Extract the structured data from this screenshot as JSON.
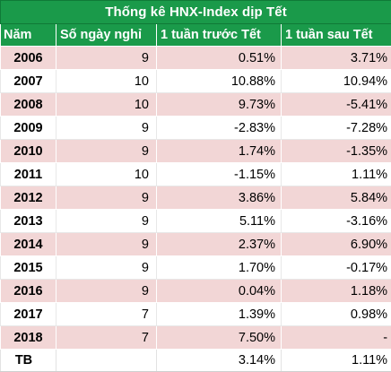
{
  "title": "Thống kê HNX-Index dịp Tết",
  "columns": {
    "year": "Năm",
    "days": "Số ngày nghỉ",
    "before": "1 tuần trước Tết",
    "after": "1 tuần sau Tết"
  },
  "rows": [
    {
      "year": "2006",
      "days": "9",
      "before": "0.51%",
      "after": "3.71%"
    },
    {
      "year": "2007",
      "days": "10",
      "before": "10.88%",
      "after": "10.94%"
    },
    {
      "year": "2008",
      "days": "10",
      "before": "9.73%",
      "after": "-5.41%"
    },
    {
      "year": "2009",
      "days": "9",
      "before": "-2.83%",
      "after": "-7.28%"
    },
    {
      "year": "2010",
      "days": "9",
      "before": "1.74%",
      "after": "-1.35%"
    },
    {
      "year": "2011",
      "days": "10",
      "before": "-1.15%",
      "after": "1.11%"
    },
    {
      "year": "2012",
      "days": "9",
      "before": "3.86%",
      "after": "5.84%"
    },
    {
      "year": "2013",
      "days": "9",
      "before": "5.11%",
      "after": "-3.16%"
    },
    {
      "year": "2014",
      "days": "9",
      "before": "2.37%",
      "after": "6.90%"
    },
    {
      "year": "2015",
      "days": "9",
      "before": "1.70%",
      "after": "-0.17%"
    },
    {
      "year": "2016",
      "days": "9",
      "before": "0.04%",
      "after": "1.18%"
    },
    {
      "year": "2017",
      "days": "7",
      "before": "1.39%",
      "after": "0.98%"
    },
    {
      "year": "2018",
      "days": "7",
      "before": "7.50%",
      "after": "-"
    }
  ],
  "total": {
    "label": "TB",
    "before": "3.14%",
    "after": "1.11%"
  },
  "colors": {
    "header_green": "#1a9a4a",
    "band_pink": "#f2d6d6"
  }
}
